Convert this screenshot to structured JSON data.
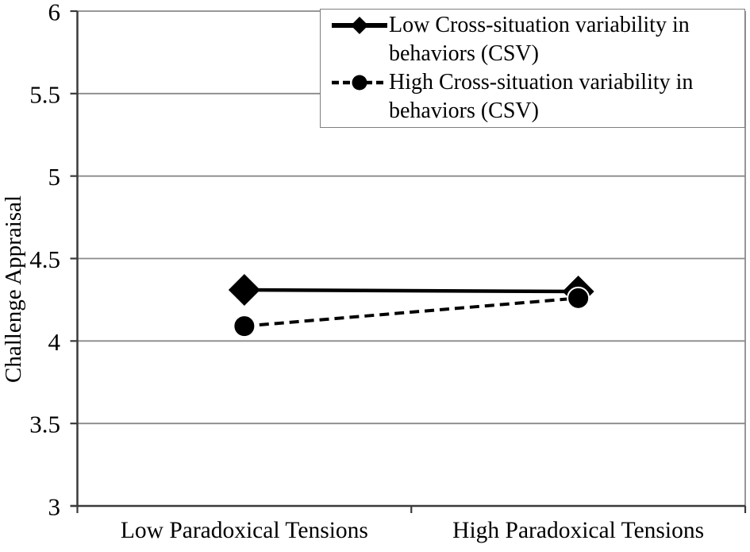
{
  "chart_data": {
    "type": "line",
    "title": "",
    "xlabel": "",
    "ylabel": "Challenge Appraisal",
    "categories": [
      "Low Paradoxical Tensions",
      "High Paradoxical Tensions"
    ],
    "series": [
      {
        "name": "Low Cross-situation variability in behaviors (CSV)",
        "values": [
          4.31,
          4.3
        ],
        "line_style": "solid",
        "marker": "diamond",
        "color": "#000000"
      },
      {
        "name": "High Cross-situation variability in behaviors (CSV)",
        "values": [
          4.09,
          4.26
        ],
        "line_style": "dashed",
        "marker": "circle",
        "color": "#000000"
      }
    ],
    "ylim": [
      3,
      6
    ],
    "yticks": [
      3,
      3.5,
      4,
      4.5,
      5,
      5.5,
      6
    ],
    "ytick_labels": [
      "3",
      "3.5",
      "4",
      "4.5",
      "5",
      "5.5",
      "6"
    ],
    "grid": true,
    "legend_position": "top-right",
    "colors": {
      "gridline": "#8a8a8a",
      "axis": "#3a3a3a",
      "series": "#000000",
      "background": "#ffffff",
      "legend_border": "#7f7f7f",
      "text": "#000000"
    }
  }
}
